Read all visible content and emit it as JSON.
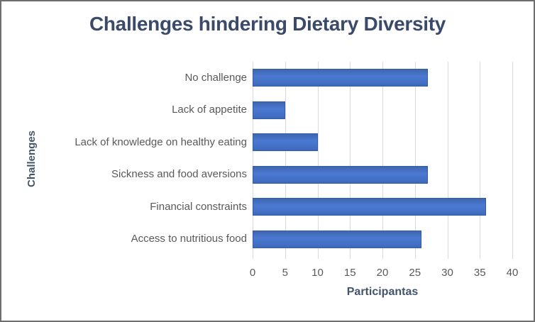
{
  "chart_data": {
    "type": "bar",
    "orientation": "horizontal",
    "title": "Challenges hindering Dietary Diversity",
    "categories": [
      "No challenge",
      "Lack of appetite",
      "Lack of knowledge on healthy eating",
      "Sickness and food aversions",
      "Financial constraints",
      "Access to nutritious food"
    ],
    "values": [
      27,
      5,
      10,
      27,
      36,
      26
    ],
    "xlabel": "Participantas",
    "ylabel": "Challenges",
    "xlim": [
      0,
      40
    ],
    "xticks": [
      0,
      5,
      10,
      15,
      20,
      25,
      30,
      35,
      40
    ],
    "grid": "vertical",
    "legend": "none",
    "colors": {
      "bar": "#4472C4",
      "bar_border": "#2F5DA6",
      "gridline": "#D9D9D9",
      "title": "#3A4A68",
      "axis_title": "#44546A",
      "tick_label": "#595959",
      "category_label": "#595959",
      "figure_border": "#6E6E6E"
    }
  }
}
